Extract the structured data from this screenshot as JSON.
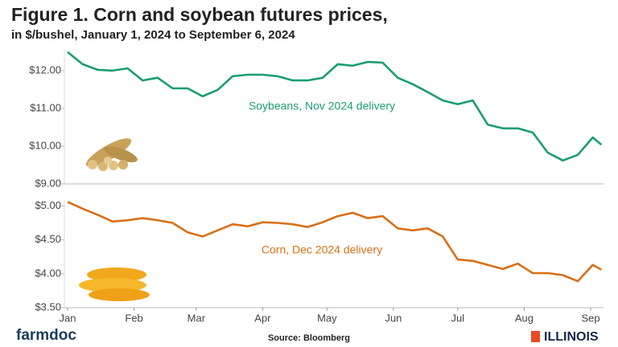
{
  "header": {
    "title": "Figure 1. Corn and soybean futures prices,",
    "subtitle": "in $/bushel, January 1, 2024 to September 6, 2024"
  },
  "footer": {
    "brand": "farmdoc",
    "source": "Source: Bloomberg",
    "logo": "ILLINOIS"
  },
  "chart_data": [
    {
      "type": "line",
      "annotation": "Soybeans, Nov 2024 delivery",
      "color": "#1a9e6e",
      "x": [
        "2024-01-01",
        "2024-01-08",
        "2024-01-15",
        "2024-01-22",
        "2024-01-29",
        "2024-02-05",
        "2024-02-12",
        "2024-02-19",
        "2024-02-26",
        "2024-03-04",
        "2024-03-11",
        "2024-03-18",
        "2024-03-25",
        "2024-04-01",
        "2024-04-08",
        "2024-04-15",
        "2024-04-22",
        "2024-04-29",
        "2024-05-06",
        "2024-05-13",
        "2024-05-20",
        "2024-05-27",
        "2024-06-03",
        "2024-06-10",
        "2024-06-17",
        "2024-06-24",
        "2024-07-01",
        "2024-07-08",
        "2024-07-15",
        "2024-07-22",
        "2024-07-29",
        "2024-08-05",
        "2024-08-12",
        "2024-08-19",
        "2024-08-26",
        "2024-09-02",
        "2024-09-06"
      ],
      "values": [
        12.49,
        12.17,
        12.02,
        12.0,
        12.06,
        11.74,
        11.81,
        11.53,
        11.53,
        11.32,
        11.49,
        11.85,
        11.89,
        11.89,
        11.85,
        11.74,
        11.74,
        11.81,
        12.17,
        12.13,
        12.23,
        12.21,
        11.81,
        11.64,
        11.43,
        11.21,
        11.11,
        11.21,
        10.57,
        10.47,
        10.47,
        10.36,
        9.83,
        9.62,
        9.77,
        10.23,
        10.04
      ],
      "xlim": [
        "2024-01-01",
        "2024-09-07"
      ],
      "ylim": [
        9,
        12.55
      ],
      "yticks": [
        {
          "value": 9,
          "label": "$9.00"
        },
        {
          "value": 10,
          "label": "$10.00"
        },
        {
          "value": 11,
          "label": "$11.00"
        },
        {
          "value": 12,
          "label": "$12.00"
        }
      ]
    },
    {
      "type": "line",
      "annotation": "Corn, Dec 2024 delivery",
      "color": "#d96f15",
      "x": [
        "2024-01-01",
        "2024-01-08",
        "2024-01-15",
        "2024-01-22",
        "2024-01-29",
        "2024-02-05",
        "2024-02-12",
        "2024-02-19",
        "2024-02-26",
        "2024-03-04",
        "2024-03-11",
        "2024-03-18",
        "2024-03-25",
        "2024-04-01",
        "2024-04-08",
        "2024-04-15",
        "2024-04-22",
        "2024-04-29",
        "2024-05-06",
        "2024-05-13",
        "2024-05-20",
        "2024-05-27",
        "2024-06-03",
        "2024-06-10",
        "2024-06-17",
        "2024-06-24",
        "2024-07-01",
        "2024-07-08",
        "2024-07-15",
        "2024-07-22",
        "2024-07-29",
        "2024-08-05",
        "2024-08-12",
        "2024-08-19",
        "2024-08-26",
        "2024-09-02",
        "2024-09-06"
      ],
      "values": [
        5.06,
        4.96,
        4.87,
        4.77,
        4.79,
        4.82,
        4.79,
        4.75,
        4.61,
        4.55,
        4.64,
        4.73,
        4.7,
        4.76,
        4.75,
        4.73,
        4.69,
        4.76,
        4.85,
        4.9,
        4.82,
        4.85,
        4.67,
        4.64,
        4.67,
        4.55,
        4.21,
        4.19,
        4.13,
        4.07,
        4.15,
        4.01,
        4.01,
        3.98,
        3.89,
        4.13,
        4.06
      ],
      "xlim": [
        "2024-01-01",
        "2024-09-07"
      ],
      "ylim": [
        3.5,
        5.1
      ],
      "yticks": [
        {
          "value": 3.5,
          "label": "$3.50"
        },
        {
          "value": 4,
          "label": "$4.00"
        },
        {
          "value": 4.5,
          "label": "$4.50"
        },
        {
          "value": 5,
          "label": "$5.00"
        }
      ],
      "xticks": [
        {
          "value": "2024-01-01",
          "label": "Jan"
        },
        {
          "value": "2024-02-01",
          "label": "Feb"
        },
        {
          "value": "2024-03-01",
          "label": "Mar"
        },
        {
          "value": "2024-04-01",
          "label": "Apr"
        },
        {
          "value": "2024-05-01",
          "label": "May"
        },
        {
          "value": "2024-06-01",
          "label": "Jun"
        },
        {
          "value": "2024-07-01",
          "label": "Jul"
        },
        {
          "value": "2024-08-01",
          "label": "Aug"
        },
        {
          "value": "2024-09-01",
          "label": "Sep"
        }
      ]
    }
  ]
}
